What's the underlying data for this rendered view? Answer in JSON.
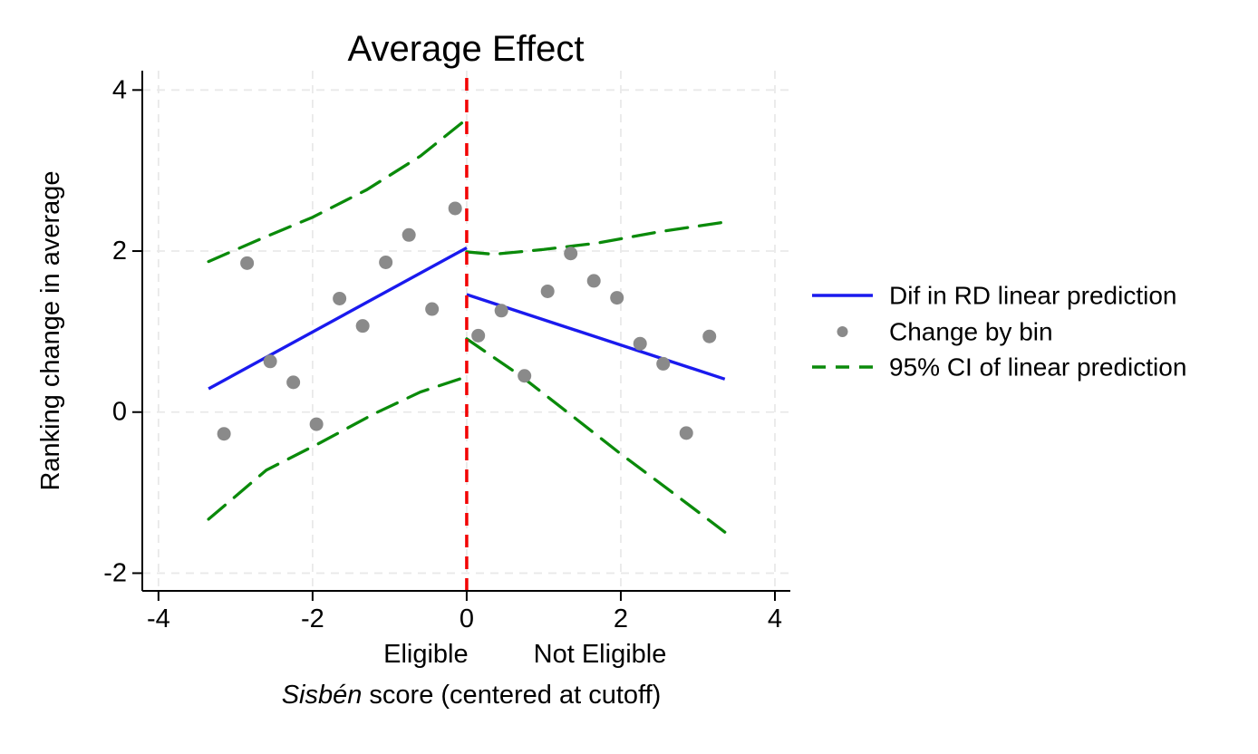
{
  "title": "Average Effect",
  "chart_data": {
    "type": "scatter",
    "subtype": "regression-discontinuity",
    "title": "Average Effect",
    "ylabel": "Ranking change in average",
    "xlabel_italic": "Sisbén",
    "xlabel_rest": " score (centered at cutoff)",
    "xticks": [
      -4,
      -2,
      0,
      2,
      4
    ],
    "yticks": [
      -2,
      0,
      2,
      4
    ],
    "xlim": [
      -4.21,
      4.2
    ],
    "ylim": [
      -2.22,
      4.24
    ],
    "grid": true,
    "region_labels": [
      {
        "text": "Eligible",
        "x": -0.53,
        "side": "left-of-cutoff"
      },
      {
        "text": "Not Eligible",
        "x": 1.73,
        "side": "right-of-cutoff"
      }
    ],
    "cutoff_line": {
      "x": 0,
      "y_top": 4.15,
      "color": "#f20000",
      "style": "dashed"
    },
    "scatter": {
      "name": "Change by bin",
      "color": "#8a8a8a",
      "points": [
        [
          -3.15,
          -0.27
        ],
        [
          -2.85,
          1.85
        ],
        [
          -2.55,
          0.63
        ],
        [
          -2.25,
          0.37
        ],
        [
          -1.95,
          -0.15
        ],
        [
          -1.65,
          1.41
        ],
        [
          -1.35,
          1.07
        ],
        [
          -1.05,
          1.86
        ],
        [
          -0.75,
          2.2
        ],
        [
          -0.45,
          1.28
        ],
        [
          -0.15,
          2.53
        ],
        [
          0.15,
          0.95
        ],
        [
          0.45,
          1.26
        ],
        [
          0.75,
          0.45
        ],
        [
          1.05,
          1.5
        ],
        [
          1.35,
          1.97
        ],
        [
          1.65,
          1.63
        ],
        [
          1.95,
          1.42
        ],
        [
          2.25,
          0.85
        ],
        [
          2.55,
          0.6
        ],
        [
          2.85,
          -0.26
        ],
        [
          3.15,
          0.94
        ]
      ]
    },
    "prediction": {
      "name": "Dif in RD linear prediction",
      "color": "#1a1aee",
      "segments": [
        [
          [
            -3.35,
            0.29
          ],
          [
            0,
            2.04
          ]
        ],
        [
          [
            0,
            1.46
          ],
          [
            3.35,
            0.41
          ]
        ]
      ]
    },
    "ci": {
      "name": "95% CI of linear prediction",
      "color": "#0a8a0a",
      "style": "dashed",
      "curves": [
        [
          [
            -3.35,
            1.87
          ],
          [
            -2.7,
            2.14
          ],
          [
            -2.0,
            2.42
          ],
          [
            -1.3,
            2.76
          ],
          [
            -0.6,
            3.18
          ],
          [
            0,
            3.64
          ]
        ],
        [
          [
            -3.35,
            -1.33
          ],
          [
            -2.6,
            -0.72
          ],
          [
            -1.9,
            -0.38
          ],
          [
            -1.2,
            -0.02
          ],
          [
            -0.6,
            0.25
          ],
          [
            0,
            0.44
          ]
        ],
        [
          [
            0,
            1.99
          ],
          [
            0.35,
            1.96
          ],
          [
            1.0,
            2.02
          ],
          [
            1.7,
            2.1
          ],
          [
            2.5,
            2.24
          ],
          [
            3.35,
            2.36
          ]
        ],
        [
          [
            0,
            0.91
          ],
          [
            0.7,
            0.45
          ],
          [
            1.4,
            -0.07
          ],
          [
            2.0,
            -0.52
          ],
          [
            2.7,
            -1.02
          ],
          [
            3.35,
            -1.49
          ]
        ]
      ]
    },
    "legend": {
      "position": "right-outside",
      "entries": [
        {
          "marker": "line",
          "color": "#1a1aee",
          "label": "Dif in RD linear prediction"
        },
        {
          "marker": "dot",
          "color": "#8a8a8a",
          "label": "Change by bin"
        },
        {
          "marker": "dashes",
          "color": "#0a8a0a",
          "label": "95% CI of linear prediction"
        }
      ]
    },
    "colors": {
      "grid": "#e9e9e9",
      "axis": "#000000",
      "background": "#ffffff"
    }
  }
}
